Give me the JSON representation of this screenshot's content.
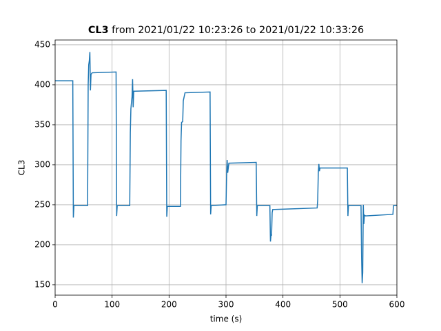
{
  "chart_data": {
    "type": "line",
    "title": {
      "name": "CL3",
      "text": "from 2021/01/22 10:23:26 to 2021/01/22 10:33:26"
    },
    "xlabel": "time (s)",
    "ylabel": "CL3",
    "xlim": [
      0,
      600
    ],
    "xticks": [
      0,
      100,
      200,
      300,
      400,
      500,
      600
    ],
    "ylim": [
      137,
      456
    ],
    "yticks": [
      150,
      200,
      250,
      300,
      350,
      400,
      450
    ],
    "grid": true,
    "series": [
      {
        "name": "CL3",
        "color": "#1f77b4",
        "x": [
          0,
          31,
          32,
          33,
          57,
          58,
          59,
          60,
          61,
          62,
          63,
          65,
          107,
          108,
          109,
          131,
          132,
          133,
          135,
          136,
          137,
          138,
          140,
          195,
          196,
          197,
          220,
          221,
          222,
          224,
          225,
          228,
          272,
          273,
          274,
          300,
          301,
          302,
          303,
          305,
          353,
          354,
          355,
          377,
          378,
          379,
          380,
          381,
          382,
          460,
          461,
          462,
          463,
          464,
          465,
          513,
          514,
          515,
          537,
          538,
          539,
          540,
          541,
          542,
          543,
          545,
          593,
          594,
          600
        ],
        "values": [
          405,
          405,
          234,
          249,
          249,
          400,
          425,
          430,
          441,
          393,
          413,
          415,
          416,
          236,
          249,
          249,
          340,
          370,
          385,
          407,
          372,
          392,
          392,
          393,
          235,
          248,
          248,
          330,
          353,
          354,
          380,
          390,
          391,
          238,
          249,
          250,
          285,
          306,
          290,
          302,
          303,
          236,
          249,
          249,
          204,
          212,
          212,
          240,
          244,
          246,
          256,
          290,
          301,
          292,
          296,
          296,
          236,
          249,
          249,
          185,
          152,
          165,
          250,
          226,
          237,
          236,
          238,
          249,
          249
        ]
      }
    ]
  }
}
